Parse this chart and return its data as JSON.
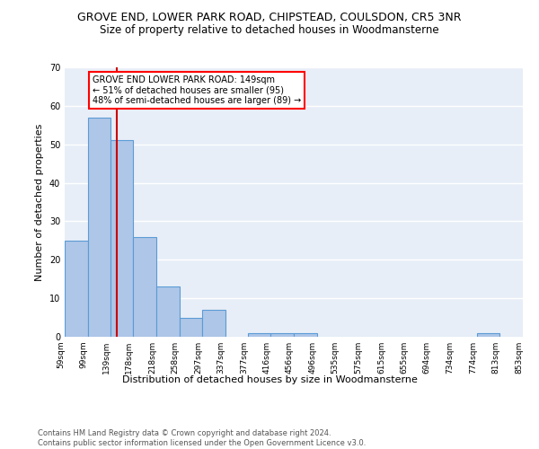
{
  "title": "GROVE END, LOWER PARK ROAD, CHIPSTEAD, COULSDON, CR5 3NR",
  "subtitle": "Size of property relative to detached houses in Woodmansterne",
  "xlabel": "Distribution of detached houses by size in Woodmansterne",
  "ylabel": "Number of detached properties",
  "bar_color": "#aec6e8",
  "bar_edge_color": "#5b9bd5",
  "background_color": "#e8eef7",
  "grid_color": "#ffffff",
  "annotation_box_text": "GROVE END LOWER PARK ROAD: 149sqm\n← 51% of detached houses are smaller (95)\n48% of semi-detached houses are larger (89) →",
  "marker_value": 149,
  "marker_color": "#cc0000",
  "bins": [
    59,
    99,
    139,
    178,
    218,
    258,
    297,
    337,
    377,
    416,
    456,
    496,
    535,
    575,
    615,
    655,
    694,
    734,
    774,
    813,
    853
  ],
  "counts": [
    25,
    57,
    51,
    26,
    13,
    5,
    7,
    0,
    1,
    1,
    1,
    0,
    0,
    0,
    0,
    0,
    0,
    0,
    1,
    0
  ],
  "ylim": [
    0,
    70
  ],
  "yticks": [
    0,
    10,
    20,
    30,
    40,
    50,
    60,
    70
  ],
  "footer_text": "Contains HM Land Registry data © Crown copyright and database right 2024.\nContains public sector information licensed under the Open Government Licence v3.0.",
  "title_fontsize": 9,
  "subtitle_fontsize": 8.5,
  "tick_label_fontsize": 6.5,
  "ylabel_fontsize": 8,
  "xlabel_fontsize": 8,
  "annotation_fontsize": 7,
  "footer_fontsize": 6
}
